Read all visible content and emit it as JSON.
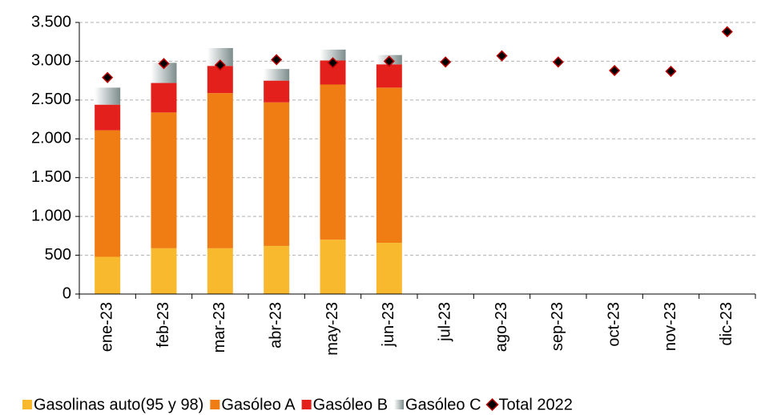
{
  "chart_data": {
    "type": "bar",
    "stacked": true,
    "categories": [
      "ene-23",
      "feb-23",
      "mar-23",
      "abr-23",
      "may-23",
      "jun-23",
      "jul-23",
      "ago-23",
      "sep-23",
      "oct-23",
      "nov-23",
      "dic-23"
    ],
    "series": [
      {
        "name": "Gasolinas auto(95 y 98)",
        "color": "#f9b92e",
        "type": "bar",
        "values": [
          480,
          590,
          590,
          620,
          700,
          660,
          null,
          null,
          null,
          null,
          null,
          null
        ]
      },
      {
        "name": "Gasóleo A",
        "color": "#ef7d14",
        "type": "bar",
        "values": [
          1630,
          1750,
          2000,
          1850,
          2000,
          2000,
          null,
          null,
          null,
          null,
          null,
          null
        ]
      },
      {
        "name": "Gasóleo B",
        "color": "#e3201b",
        "type": "bar",
        "values": [
          330,
          380,
          350,
          280,
          310,
          300,
          null,
          null,
          null,
          null,
          null,
          null
        ]
      },
      {
        "name": "Gasóleo C",
        "color": "#7d8c8c",
        "type": "bar",
        "gradient": true,
        "values": [
          220,
          260,
          230,
          150,
          140,
          120,
          null,
          null,
          null,
          null,
          null,
          null
        ]
      },
      {
        "name": "Total 2022",
        "color": "#000000",
        "edge_color": "#c00000",
        "type": "marker",
        "values": [
          2790,
          2970,
          2950,
          3020,
          2980,
          3000,
          2990,
          3070,
          2990,
          2880,
          2870,
          3380
        ]
      }
    ],
    "ylim": [
      0,
      3500
    ],
    "yticks": [
      0,
      500,
      {
        "value": 1000,
        "label": "1.000"
      },
      {
        "value": 1500,
        "label": "1.500"
      },
      {
        "value": 2000,
        "label": "2.000"
      },
      {
        "value": 2500,
        "label": "2.500"
      },
      {
        "value": 3000,
        "label": "3.000"
      },
      {
        "value": 3500,
        "label": "3.500"
      }
    ],
    "grid": true,
    "legend": "bottom"
  }
}
